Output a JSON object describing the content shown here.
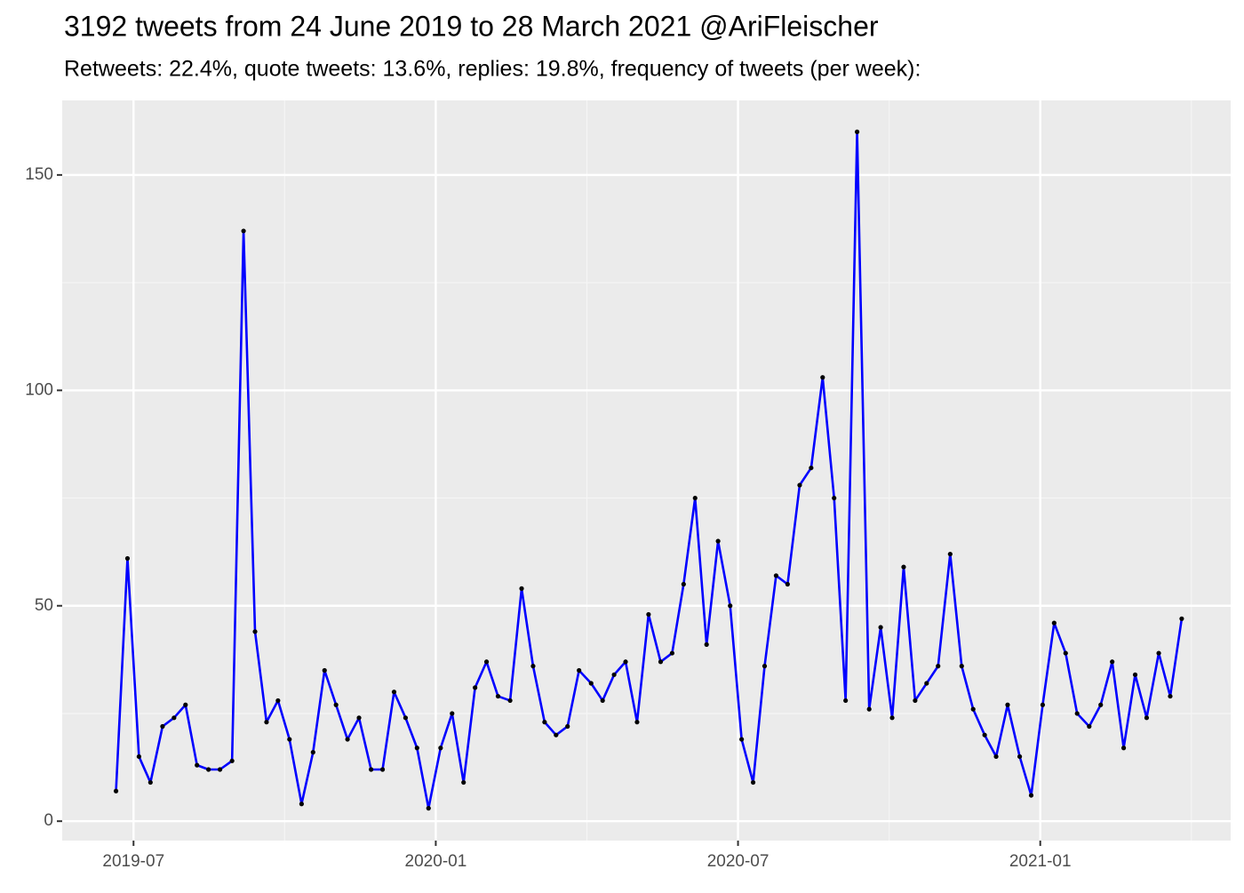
{
  "chart_data": {
    "type": "line",
    "title": "3192 tweets from 24 June 2019 to 28 March 2021 @AriFleischer",
    "subtitle": "Retweets: 22.4%, quote tweets: 13.6%, replies: 19.8%, frequency of tweets (per week):",
    "x": [
      2019.471,
      2019.49,
      2019.509,
      2019.528,
      2019.548,
      2019.567,
      2019.586,
      2019.605,
      2019.624,
      2019.643,
      2019.663,
      2019.682,
      2019.701,
      2019.72,
      2019.739,
      2019.758,
      2019.778,
      2019.797,
      2019.816,
      2019.835,
      2019.854,
      2019.873,
      2019.893,
      2019.912,
      2019.931,
      2019.95,
      2019.969,
      2019.988,
      2020.008,
      2020.027,
      2020.046,
      2020.065,
      2020.084,
      2020.103,
      2020.123,
      2020.142,
      2020.161,
      2020.18,
      2020.199,
      2020.218,
      2020.237,
      2020.257,
      2020.276,
      2020.295,
      2020.314,
      2020.333,
      2020.352,
      2020.372,
      2020.391,
      2020.41,
      2020.429,
      2020.448,
      2020.467,
      2020.487,
      2020.506,
      2020.525,
      2020.544,
      2020.563,
      2020.582,
      2020.602,
      2020.621,
      2020.64,
      2020.659,
      2020.678,
      2020.697,
      2020.717,
      2020.736,
      2020.755,
      2020.774,
      2020.793,
      2020.812,
      2020.831,
      2020.851,
      2020.87,
      2020.889,
      2020.908,
      2020.927,
      2020.946,
      2020.966,
      2020.985,
      2021.004,
      2021.023,
      2021.042,
      2021.061,
      2021.081,
      2021.1,
      2021.119,
      2021.138,
      2021.157,
      2021.176,
      2021.196,
      2021.215,
      2021.234
    ],
    "values": [
      7,
      61,
      15,
      9,
      22,
      24,
      27,
      13,
      12,
      12,
      14,
      137,
      44,
      23,
      28,
      19,
      4,
      16,
      35,
      27,
      19,
      24,
      12,
      12,
      30,
      24,
      17,
      3,
      17,
      25,
      9,
      31,
      37,
      29,
      28,
      54,
      36,
      23,
      20,
      22,
      35,
      32,
      28,
      34,
      37,
      23,
      48,
      37,
      39,
      55,
      75,
      41,
      65,
      50,
      19,
      9,
      36,
      57,
      55,
      78,
      82,
      103,
      75,
      28,
      160,
      26,
      45,
      24,
      59,
      28,
      32,
      36,
      62,
      36,
      26,
      20,
      15,
      27,
      15,
      6,
      27,
      46,
      39,
      25,
      22,
      27,
      37,
      17,
      34,
      24,
      39,
      29,
      47
    ],
    "color": "#0000ff",
    "marker_color": "#000000",
    "xlim": [
      2019.382,
      2021.315
    ],
    "xticks": [
      {
        "value": 2019.5,
        "label": "2019-07"
      },
      {
        "value": 2020.0,
        "label": "2020-01"
      },
      {
        "value": 2020.5,
        "label": "2020-07"
      },
      {
        "value": 2021.0,
        "label": "2021-01"
      }
    ],
    "ylim": [
      -4.5,
      167.3
    ],
    "yticks": [
      0,
      50,
      100,
      150
    ],
    "grid": true
  }
}
